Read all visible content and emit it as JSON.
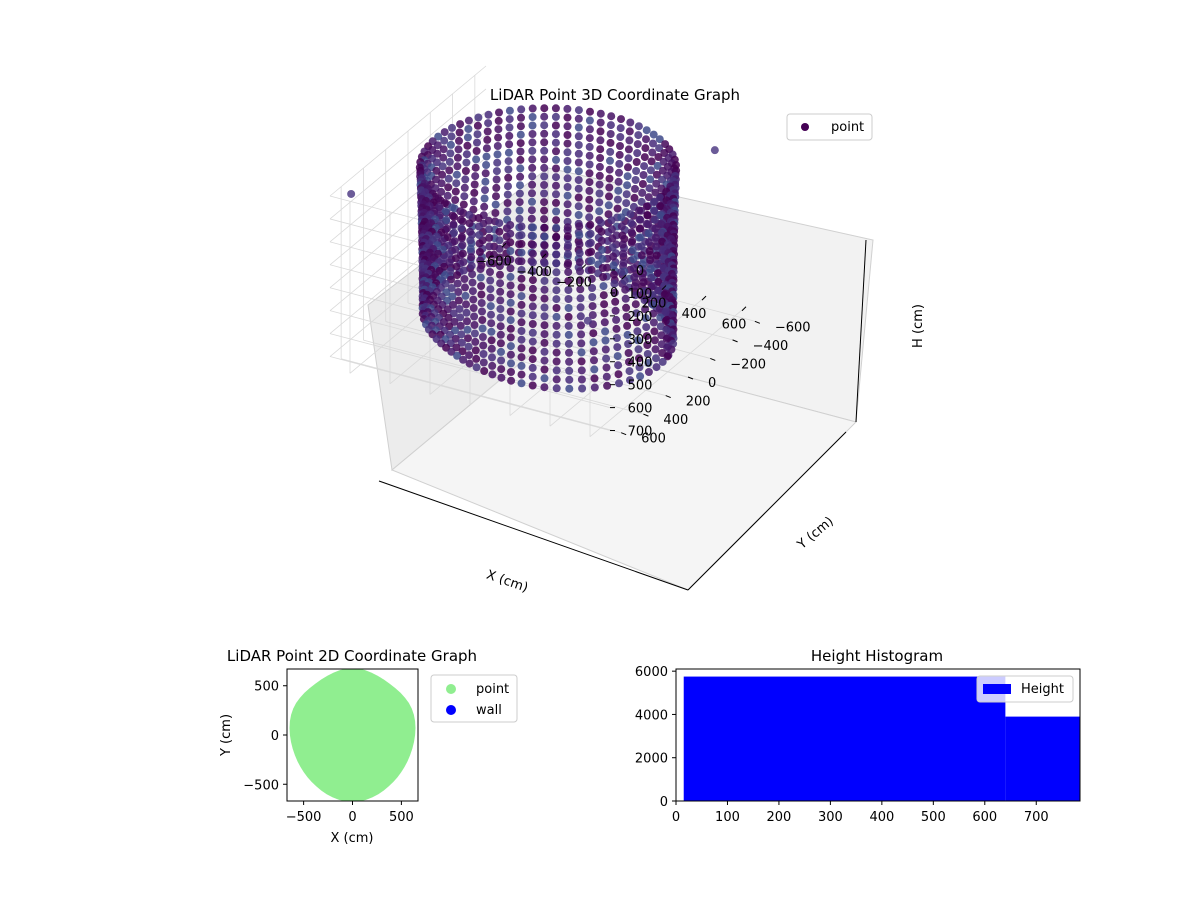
{
  "figure": {
    "background": "#ffffff"
  },
  "chart_data": [
    {
      "type": "scatter",
      "projection": "3d",
      "title": "LiDAR Point 3D Coordinate Graph",
      "xlabel": "X (cm)",
      "ylabel": "Y (cm)",
      "zlabel": "H (cm)",
      "xlim": [
        -700,
        700
      ],
      "ylim": [
        -700,
        700
      ],
      "zlim": [
        0,
        750
      ],
      "z_inverted": true,
      "x_ticks": [
        "−600",
        "−400",
        "−200",
        "0",
        "200",
        "400",
        "600"
      ],
      "y_ticks": [
        "−600",
        "−400",
        "−200",
        "0",
        "200",
        "400",
        "600"
      ],
      "z_ticks": [
        "0",
        "100",
        "200",
        "300",
        "400",
        "500",
        "600",
        "700"
      ],
      "grid": true,
      "legend": {
        "position": "top-right",
        "entries": [
          {
            "label": "point",
            "color": "#440154"
          }
        ]
      },
      "colormap": "viridis",
      "shape": "dense point cloud forming a roughly circular wall, radius about 550–650, heights 0–750"
    },
    {
      "type": "scatter",
      "title": "LiDAR Point 2D Coordinate Graph",
      "xlabel": "X (cm)",
      "ylabel": "Y (cm)",
      "xlim": [
        -670,
        670
      ],
      "ylim": [
        -670,
        670
      ],
      "x_ticks": [
        "−500",
        "0",
        "500"
      ],
      "y_ticks": [
        "−500",
        "0",
        "500"
      ],
      "legend": {
        "position": "outside-right",
        "entries": [
          {
            "label": "point",
            "color": "#90ee90"
          },
          {
            "label": "wall",
            "color": "#0000ff"
          }
        ]
      },
      "shape": "filled oval blob of points spanning x −640..640, y −650..650"
    },
    {
      "type": "bar",
      "subtype": "histogram",
      "title": "Height Histogram",
      "xlabel": "",
      "ylabel": "",
      "xlim": [
        0,
        785
      ],
      "ylim": [
        0,
        6100
      ],
      "x_ticks": [
        "0",
        "100",
        "200",
        "300",
        "400",
        "500",
        "600",
        "700"
      ],
      "y_ticks": [
        "0",
        "2000",
        "4000",
        "6000"
      ],
      "color": "#0000ff",
      "legend": {
        "position": "top-right",
        "entries": [
          {
            "label": "Height",
            "color": "#0000ff"
          }
        ]
      },
      "bins": [
        {
          "from": 15,
          "to": 640,
          "count": 5750
        },
        {
          "from": 640,
          "to": 785,
          "count": 3900
        }
      ]
    }
  ]
}
